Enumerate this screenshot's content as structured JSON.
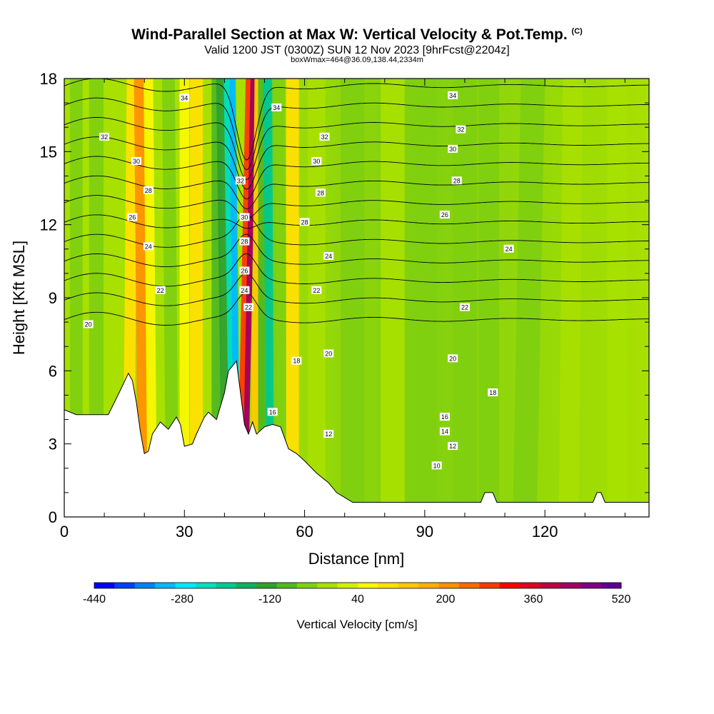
{
  "header": {
    "title": "Wind-Parallel Section at Max W: Vertical Velocity & Pot.Temp.",
    "title_corner": "(C)",
    "subtitle": "Valid 1200 JST (0300Z) SUN 12 Nov 2023 [9hrFcst@2204z]",
    "subtitle2": "boxWmax=464@36.09,138.44,2334m"
  },
  "chart_data": {
    "type": "heatmap",
    "xlabel": "Distance [nm]",
    "ylabel": "Height [Kft MSL]",
    "xlim": [
      0,
      146
    ],
    "ylim": [
      0,
      18
    ],
    "x_ticks": [
      0,
      30,
      60,
      90,
      120
    ],
    "y_ticks": [
      0,
      3,
      6,
      9,
      12,
      15,
      18
    ],
    "colorbar": {
      "label": "Vertical Velocity [cm/s]",
      "tick_values": [
        -440,
        -280,
        -120,
        40,
        200,
        360,
        520
      ],
      "levels": [
        -440,
        -400,
        -360,
        -320,
        -280,
        -240,
        -200,
        -160,
        -120,
        -80,
        -40,
        0,
        40,
        80,
        120,
        160,
        200,
        240,
        280,
        320,
        360,
        400,
        440,
        480,
        520
      ],
      "colors": [
        "#0000ff",
        "#0040ff",
        "#0080ff",
        "#00b8ff",
        "#00e8ff",
        "#00e0c0",
        "#00c890",
        "#10b060",
        "#30a030",
        "#50b820",
        "#80d010",
        "#a8e000",
        "#d0f000",
        "#f8f800",
        "#ffe000",
        "#ffc800",
        "#ffb000",
        "#ff9000",
        "#ff6800",
        "#ff3800",
        "#ff0000",
        "#e00020",
        "#c00040",
        "#a00060",
        "#800080",
        "#600090"
      ]
    },
    "updraft_core": {
      "x_bottom": 44,
      "x_top": 47,
      "max_w": 464
    },
    "potential_temperature_contours": [
      {
        "value": 10,
        "labels": [
          {
            "x": 93,
            "y": 2.1
          }
        ]
      },
      {
        "value": 12,
        "labels": [
          {
            "x": 66,
            "y": 3.4
          },
          {
            "x": 97,
            "y": 2.9
          }
        ]
      },
      {
        "value": 14,
        "labels": [
          {
            "x": 95,
            "y": 3.5
          }
        ]
      },
      {
        "value": 16,
        "labels": [
          {
            "x": 52,
            "y": 4.3
          },
          {
            "x": 95,
            "y": 4.1
          }
        ]
      },
      {
        "value": 18,
        "labels": [
          {
            "x": 58,
            "y": 6.4
          },
          {
            "x": 107,
            "y": 5.1
          }
        ]
      },
      {
        "value": 20,
        "labels": [
          {
            "x": 6,
            "y": 7.9
          },
          {
            "x": 66,
            "y": 6.7
          },
          {
            "x": 97,
            "y": 6.5
          }
        ]
      },
      {
        "value": 22,
        "labels": [
          {
            "x": 24,
            "y": 9.3
          },
          {
            "x": 46,
            "y": 8.6
          },
          {
            "x": 63,
            "y": 9.3
          },
          {
            "x": 100,
            "y": 8.6
          }
        ]
      },
      {
        "value": 24,
        "labels": [
          {
            "x": 21,
            "y": 11.1
          },
          {
            "x": 45,
            "y": 9.3
          },
          {
            "x": 66,
            "y": 10.7
          },
          {
            "x": 111,
            "y": 11.0
          }
        ]
      },
      {
        "value": 26,
        "labels": [
          {
            "x": 17,
            "y": 12.3
          },
          {
            "x": 45,
            "y": 10.1
          },
          {
            "x": 95,
            "y": 12.4
          }
        ]
      },
      {
        "value": 28,
        "labels": [
          {
            "x": 21,
            "y": 13.4
          },
          {
            "x": 45,
            "y": 11.3
          },
          {
            "x": 60,
            "y": 12.1
          },
          {
            "x": 64,
            "y": 13.3
          },
          {
            "x": 98,
            "y": 13.8
          }
        ]
      },
      {
        "value": 30,
        "labels": [
          {
            "x": 18,
            "y": 14.6
          },
          {
            "x": 45,
            "y": 12.3
          },
          {
            "x": 63,
            "y": 14.6
          },
          {
            "x": 97,
            "y": 15.1
          }
        ]
      },
      {
        "value": 32,
        "labels": [
          {
            "x": 10,
            "y": 15.6
          },
          {
            "x": 44,
            "y": 13.8
          },
          {
            "x": 65,
            "y": 15.6
          },
          {
            "x": 99,
            "y": 15.9
          }
        ]
      },
      {
        "value": 34,
        "labels": [
          {
            "x": 30,
            "y": 17.2
          },
          {
            "x": 53,
            "y": 16.8
          },
          {
            "x": 97,
            "y": 17.3
          }
        ]
      }
    ]
  }
}
